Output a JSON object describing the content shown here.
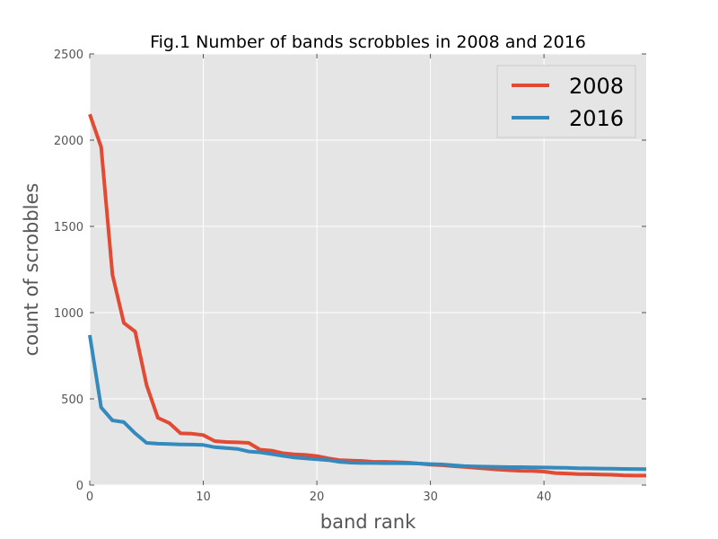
{
  "chart_data": {
    "type": "line",
    "title": "Fig.1 Number of bands scrobbles in 2008 and 2016",
    "xlabel": "band rank",
    "ylabel": "count of scrobbles",
    "xlim": [
      0,
      49
    ],
    "ylim": [
      0,
      2500
    ],
    "xticks": [
      0,
      10,
      20,
      30,
      40
    ],
    "yticks": [
      0,
      500,
      1000,
      1500,
      2000,
      2500
    ],
    "grid": true,
    "legend_position": "top-right",
    "background_color": "#e5e5e5",
    "series": [
      {
        "name": "2008",
        "color": "#e24a33",
        "x": [
          0,
          1,
          2,
          3,
          4,
          5,
          6,
          7,
          8,
          9,
          10,
          11,
          12,
          13,
          14,
          15,
          16,
          17,
          18,
          19,
          20,
          21,
          22,
          23,
          24,
          25,
          26,
          27,
          28,
          29,
          30,
          31,
          32,
          33,
          34,
          35,
          36,
          37,
          38,
          39,
          40,
          41,
          42,
          43,
          44,
          45,
          46,
          47,
          48,
          49
        ],
        "values": [
          2150,
          1960,
          1220,
          940,
          890,
          580,
          390,
          360,
          300,
          298,
          290,
          255,
          250,
          248,
          245,
          205,
          200,
          185,
          178,
          175,
          168,
          155,
          145,
          142,
          140,
          135,
          135,
          133,
          130,
          125,
          118,
          115,
          110,
          105,
          100,
          95,
          90,
          86,
          83,
          82,
          78,
          70,
          67,
          64,
          63,
          61,
          60,
          57,
          55,
          55
        ]
      },
      {
        "name": "2016",
        "color": "#348abd",
        "x": [
          0,
          1,
          2,
          3,
          4,
          5,
          6,
          7,
          8,
          9,
          10,
          11,
          12,
          13,
          14,
          15,
          16,
          17,
          18,
          19,
          20,
          21,
          22,
          23,
          24,
          25,
          26,
          27,
          28,
          29,
          30,
          31,
          32,
          33,
          34,
          35,
          36,
          37,
          38,
          39,
          40,
          41,
          42,
          43,
          44,
          45,
          46,
          47,
          48,
          49
        ],
        "values": [
          870,
          450,
          375,
          365,
          300,
          245,
          240,
          238,
          236,
          235,
          233,
          220,
          215,
          210,
          195,
          190,
          180,
          170,
          160,
          155,
          150,
          145,
          135,
          130,
          128,
          128,
          127,
          127,
          126,
          125,
          122,
          120,
          115,
          110,
          108,
          107,
          105,
          104,
          104,
          103,
          102,
          101,
          100,
          98,
          97,
          96,
          95,
          94,
          93,
          92
        ]
      }
    ]
  }
}
